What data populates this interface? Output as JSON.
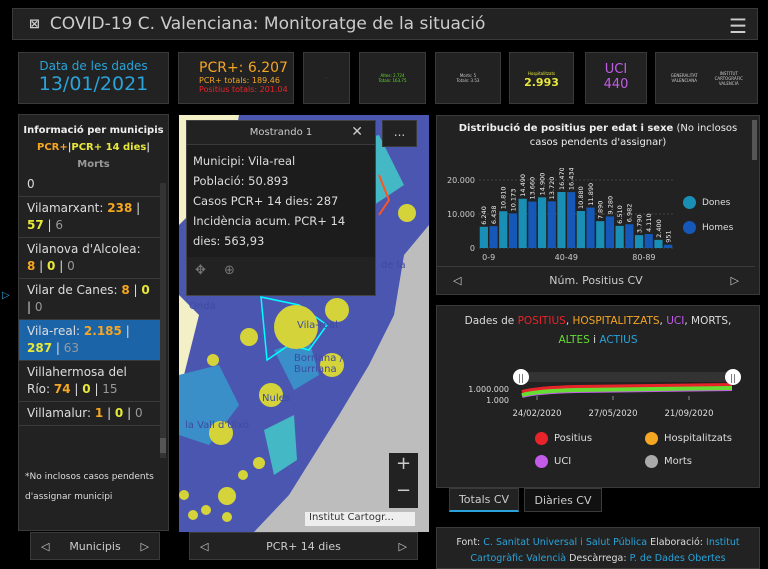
{
  "header": {
    "title": "COVID-19 C. Valenciana: Monitoratge de la situació",
    "menu_icon": "hamburger-icon",
    "logo_icon": "icv-logo-icon"
  },
  "cards": {
    "date_label": "Data de les dades",
    "date": "13/01/2021",
    "pcr": "PCR+: 6.207",
    "pcr_totals": "PCR+ totals: 189.46",
    "positius_totals": "Positius totals: 201.04",
    "altes": "Altes: 2.724",
    "altes_totals": "Totals: 163.75",
    "morts": "Morts: 5",
    "morts_totals": "Totals: 3.53",
    "hosp_label": "Hospitalitzats",
    "hosp": "2.993",
    "uci_label": "UCI",
    "uci": "440",
    "logo1": "GENERALITAT VALENCIANA",
    "logo2": "INSTITUT CARTOGRÀFIC VALENCIÀ"
  },
  "colors": {
    "blue": "#29a3d9",
    "orange": "#f5a623",
    "red": "#e8242b",
    "yellow": "#e8e83a",
    "purple": "#c25ce8",
    "green": "#66dd33"
  },
  "municipis": {
    "title": "Informació per municipis",
    "legend_pcr": "PCR+",
    "legend_pcr14": "PCR+ 14 dies",
    "legend_morts": "Morts",
    "sep": "|",
    "partial": "0",
    "items": [
      {
        "name": "Vilamarxant:",
        "pcr": "238",
        "pcr14": "57",
        "morts": "6"
      },
      {
        "name": "Vilanova d'Alcolea:",
        "pcr": "8",
        "pcr14": "0",
        "morts": "0"
      },
      {
        "name": "Vilar de Canes:",
        "pcr": "8",
        "pcr14": "0",
        "morts": "0"
      },
      {
        "name": "Vila-real:",
        "pcr": "2.185",
        "pcr14": "287",
        "morts": "63"
      },
      {
        "name": "Villahermosa del Río:",
        "pcr": "74",
        "pcr14": "0",
        "morts": "15"
      },
      {
        "name": "Villamalur:",
        "pcr": "1",
        "pcr14": "0",
        "morts": "0"
      }
    ],
    "note": "*No inclosos casos pendents d'assignar municipi",
    "nav_label": "Municipis"
  },
  "map": {
    "popup_title": "Mostrando 1",
    "lines": [
      "Municipi: Vila-real",
      "Població: 50.893",
      "Casos PCR+ 14 dies: 287",
      "Incidència acum. PCR+ 14 dies: 563,93"
    ],
    "places": [
      "Onda",
      "Vila-real",
      "Borriana / Burriana",
      "Nules",
      "la Vall d'Uixó",
      "de la"
    ],
    "attribution": "Institut Cartogr...",
    "nav_label": "PCR+ 14 dies",
    "more": "..."
  },
  "chart_data": [
    {
      "type": "bar",
      "title": "Distribució de positius per edat i sexe",
      "subtitle": "(No inclosos casos pendents d'assignar)",
      "categories": [
        "0-9",
        "10-19",
        "20-29",
        "30-39",
        "40-49",
        "50-59",
        "60-69",
        "70-79",
        "80-89",
        "90+"
      ],
      "tick_labels": [
        "0-9",
        "40-49",
        "80-89"
      ],
      "y_ticks": [
        "0",
        "10.000",
        "20.000"
      ],
      "ylim": [
        0,
        20000
      ],
      "series": [
        {
          "name": "Dones",
          "color": "#1a8fb5",
          "values": [
            6240,
            10810,
            14490,
            14900,
            16470,
            10880,
            7890,
            6510,
            3790,
            2400
          ]
        },
        {
          "name": "Homes",
          "color": "#1558b8",
          "values": [
            6438,
            10173,
            13660,
            13720,
            16434,
            11890,
            9280,
            6982,
            4110,
            951
          ]
        }
      ],
      "xlabel": "Núm. Positius CV"
    },
    {
      "type": "line",
      "title_parts": [
        {
          "t": "Dades de ",
          "c": "#ddd"
        },
        {
          "t": "POSITIUS",
          "c": "#e8242b"
        },
        {
          "t": ", ",
          "c": "#ddd"
        },
        {
          "t": "HOSPITALITZATS",
          "c": "#f5a623"
        },
        {
          "t": ", ",
          "c": "#ddd"
        },
        {
          "t": "UCI",
          "c": "#c25ce8"
        },
        {
          "t": ", ",
          "c": "#ddd"
        },
        {
          "t": "MORTS",
          "c": "#ddd"
        },
        {
          "t": ",",
          "c": "#ddd"
        }
      ],
      "title_parts2": [
        {
          "t": "ALTES",
          "c": "#66dd33"
        },
        {
          "t": " i ",
          "c": "#ddd"
        },
        {
          "t": "ACTIUS",
          "c": "#29a3d9"
        }
      ],
      "y_ticks": [
        "1.000",
        "1.000.000"
      ],
      "x_ticks": [
        "24/02/2020",
        "27/05/2020",
        "21/09/2020"
      ],
      "legend": [
        {
          "name": "Positius",
          "color": "#e8242b"
        },
        {
          "name": "Hospitalitzats",
          "color": "#f5a623"
        },
        {
          "name": "UCI",
          "color": "#c25ce8"
        },
        {
          "name": "Morts",
          "color": "#aaa"
        }
      ]
    }
  ],
  "tabs": [
    "Totals CV",
    "Diàries CV"
  ],
  "source": {
    "font_label": "Font:",
    "font": "C. Sanitat Universal i Salut Pública",
    "elab_label": "Elaboració:",
    "elab": "Institut Cartogràfic Valencià",
    "desc_label": "Descàrrega:",
    "desc": "P. de Dades Obertes"
  }
}
